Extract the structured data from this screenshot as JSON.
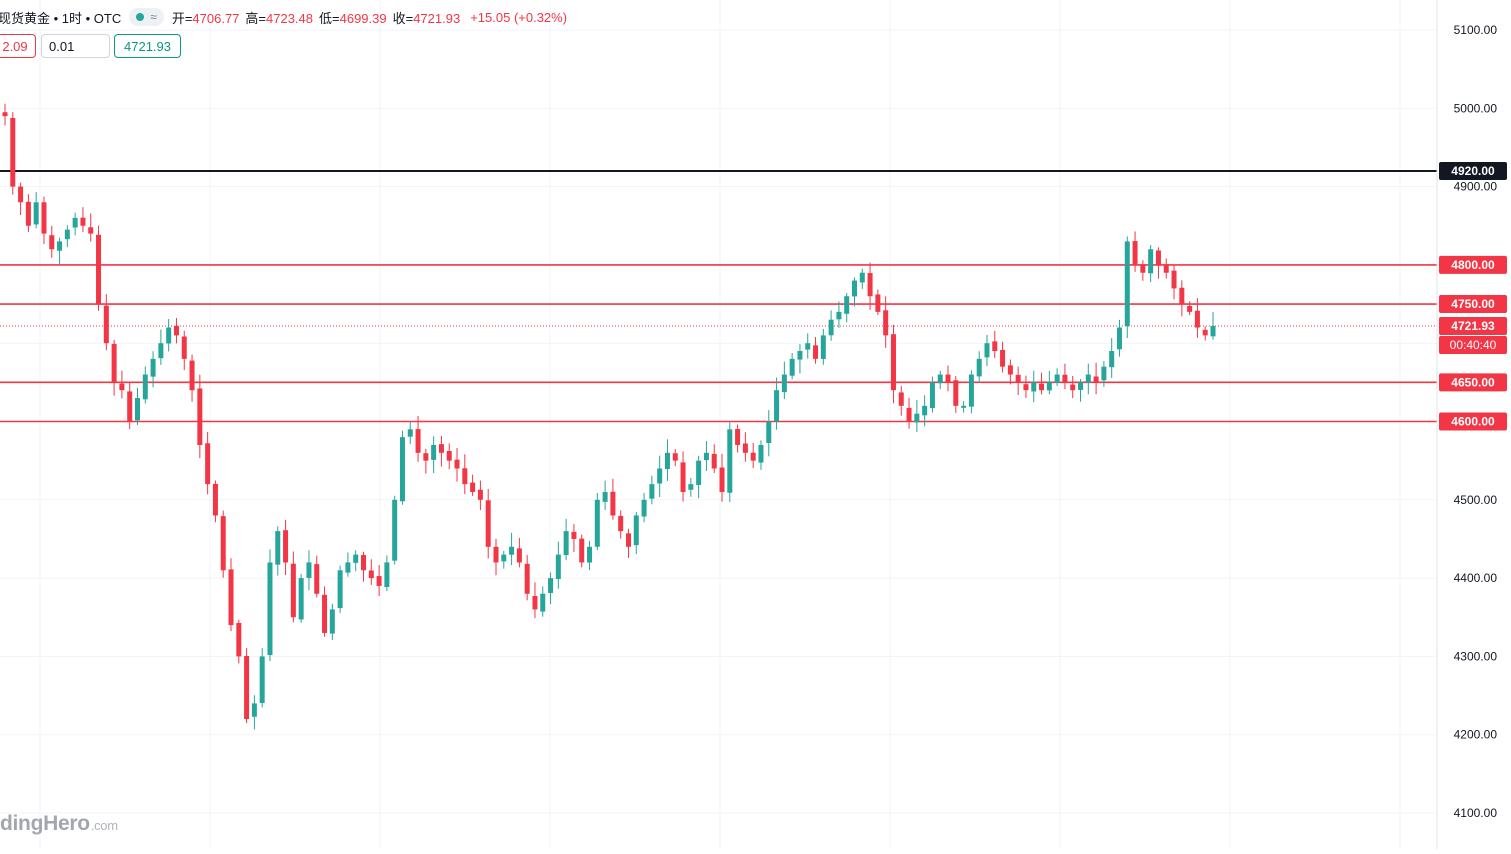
{
  "header": {
    "symbol": "现货黄金 • 1时 • OTC",
    "status_icon": "wave-icon",
    "wave_glyph": "≈",
    "open_label": "开=",
    "open_value": "4706.77",
    "high_label": "高=",
    "high_value": "4723.48",
    "low_label": "低=",
    "low_value": "4699.39",
    "close_label": "收=",
    "close_value": "4721.93",
    "change": "+15.05 (+0.32%)"
  },
  "trade": {
    "sell_price": "2.09",
    "quantity": "0.01",
    "buy_price": "4721.93"
  },
  "watermark": {
    "brand": "dingHero",
    "domain": ".com"
  },
  "colors": {
    "up": "#26a69a",
    "down": "#f23645",
    "level_line": "#f23645",
    "black_line": "#131722",
    "grid": "#f0f3fa"
  },
  "chart_data": {
    "type": "candlestick",
    "title": "现货黄金 • 1时 • OTC",
    "ylim": [
      4060,
      5180
    ],
    "y_ticks": [
      "5100.00",
      "5000.00",
      "4900.00",
      "4500.00",
      "4400.00",
      "4300.00",
      "4200.00",
      "4100.00"
    ],
    "horizontal_lines": [
      {
        "value": 4920,
        "label": "4920.00",
        "color": "#131722"
      },
      {
        "value": 4800,
        "label": "4800.00",
        "color": "#f23645"
      },
      {
        "value": 4750,
        "label": "4750.00",
        "color": "#f23645"
      },
      {
        "value": 4650,
        "label": "4650.00",
        "color": "#f23645"
      },
      {
        "value": 4600,
        "label": "4600.00",
        "color": "#f23645"
      }
    ],
    "last_price": {
      "value": 4721.93,
      "label": "4721.93",
      "countdown": "00:40:40"
    },
    "grid": true,
    "series_close": [
      4990,
      4900,
      4880,
      4850,
      4880,
      4840,
      4820,
      4830,
      4845,
      4860,
      4850,
      4840,
      4750,
      4700,
      4650,
      4640,
      4600,
      4630,
      4660,
      4680,
      4700,
      4720,
      4710,
      4680,
      4640,
      4570,
      4520,
      4480,
      4410,
      4340,
      4300,
      4220,
      4240,
      4300,
      4420,
      4460,
      4420,
      4350,
      4400,
      4420,
      4380,
      4330,
      4360,
      4410,
      4420,
      4430,
      4410,
      4400,
      4390,
      4420,
      4500,
      4580,
      4590,
      4560,
      4550,
      4570,
      4560,
      4550,
      4540,
      4520,
      4510,
      4500,
      4440,
      4420,
      4430,
      4440,
      4420,
      4380,
      4360,
      4380,
      4400,
      4430,
      4460,
      4450,
      4420,
      4440,
      4500,
      4510,
      4480,
      4460,
      4440,
      4480,
      4500,
      4520,
      4540,
      4560,
      4550,
      4510,
      4520,
      4550,
      4560,
      4540,
      4510,
      4590,
      4570,
      4560,
      4550,
      4570,
      4600,
      4640,
      4660,
      4680,
      4690,
      4700,
      4680,
      4710,
      4730,
      4740,
      4760,
      4780,
      4790,
      4760,
      4740,
      4710,
      4640,
      4620,
      4600,
      4610,
      4620,
      4650,
      4660,
      4650,
      4620,
      4620,
      4660,
      4680,
      4700,
      4690,
      4670,
      4660,
      4650,
      4640,
      4650,
      4640,
      4650,
      4660,
      4650,
      4640,
      4650,
      4660,
      4650,
      4670,
      4690,
      4720,
      4830,
      4800,
      4790,
      4820,
      4800,
      4790,
      4770,
      4750,
      4740,
      4720,
      4710,
      4722
    ]
  }
}
